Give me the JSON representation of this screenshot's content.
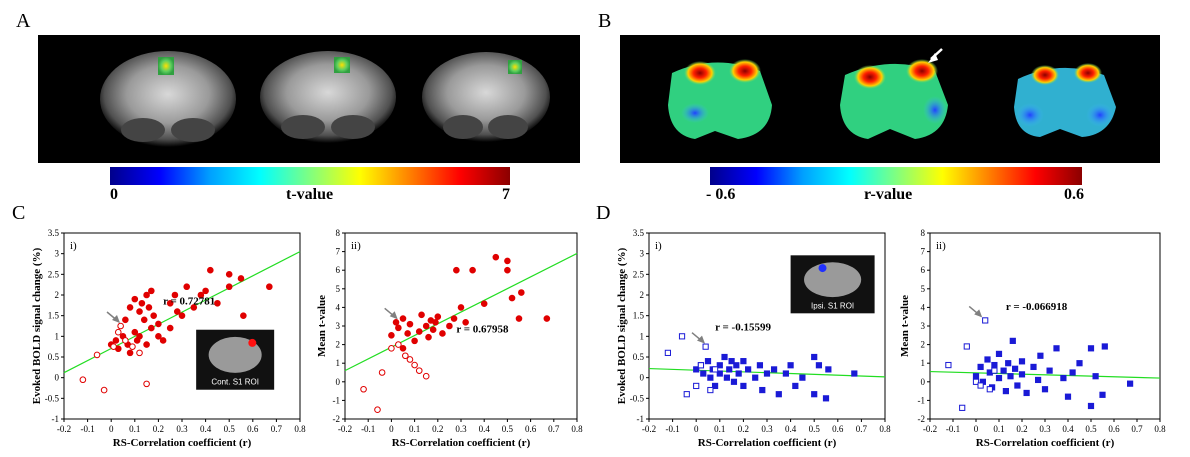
{
  "panels": {
    "A": {
      "letter": "A",
      "colorbar": {
        "min": "0",
        "label": "t-value",
        "max": "7"
      }
    },
    "B": {
      "letter": "B",
      "colorbar": {
        "min": "- 0.6",
        "label": "r-value",
        "max": "0.6"
      }
    },
    "C": {
      "letter": "C"
    },
    "D": {
      "letter": "D"
    }
  },
  "chart_data": [
    {
      "type": "scatter",
      "id": "C-i",
      "subplot_label": "i)",
      "xlabel": "RS-Correlation  coefficient (r)",
      "ylabel": "Evoked BOLD signal change (%)",
      "xlim": [
        -0.2,
        0.8
      ],
      "ylim": [
        -1,
        3.5
      ],
      "xticks": [
        "-0.2",
        "-0.1",
        "0",
        "0.1",
        "0.2",
        "0.3",
        "0.4",
        "0.5",
        "0.6",
        "0.7",
        "0.8"
      ],
      "yticks": [
        "-1",
        "-0.5",
        "0",
        "0.5",
        "1",
        "1.5",
        "2",
        "2.5",
        "3",
        "3.5"
      ],
      "annotation": "r = 0.72781",
      "inset_label": "Cont. S1 ROI",
      "fit_line": [
        [
          -0.2,
          0.12
        ],
        [
          0.8,
          3.05
        ]
      ],
      "series": [
        {
          "name": "filled",
          "marker": "filled-circle",
          "color": "#e00000",
          "points": [
            [
              0.0,
              0.8
            ],
            [
              0.02,
              0.9
            ],
            [
              0.03,
              0.7
            ],
            [
              0.05,
              1.0
            ],
            [
              0.06,
              1.4
            ],
            [
              0.07,
              0.8
            ],
            [
              0.08,
              1.7
            ],
            [
              0.08,
              0.6
            ],
            [
              0.1,
              1.1
            ],
            [
              0.1,
              1.9
            ],
            [
              0.11,
              0.9
            ],
            [
              0.12,
              1.6
            ],
            [
              0.12,
              1.0
            ],
            [
              0.13,
              1.8
            ],
            [
              0.14,
              1.4
            ],
            [
              0.15,
              2.0
            ],
            [
              0.15,
              0.8
            ],
            [
              0.16,
              1.7
            ],
            [
              0.17,
              1.2
            ],
            [
              0.17,
              2.1
            ],
            [
              0.18,
              1.5
            ],
            [
              0.2,
              1.3
            ],
            [
              0.2,
              1.0
            ],
            [
              0.22,
              0.9
            ],
            [
              0.25,
              1.2
            ],
            [
              0.25,
              1.8
            ],
            [
              0.27,
              2.0
            ],
            [
              0.28,
              1.6
            ],
            [
              0.3,
              1.5
            ],
            [
              0.32,
              2.2
            ],
            [
              0.35,
              1.7
            ],
            [
              0.38,
              2.0
            ],
            [
              0.4,
              2.1
            ],
            [
              0.42,
              2.6
            ],
            [
              0.45,
              1.8
            ],
            [
              0.5,
              2.2
            ],
            [
              0.5,
              2.5
            ],
            [
              0.55,
              2.4
            ],
            [
              0.56,
              1.5
            ],
            [
              0.67,
              2.2
            ]
          ]
        },
        {
          "name": "open",
          "marker": "open-circle",
          "color": "#e00000",
          "points": [
            [
              -0.12,
              -0.05
            ],
            [
              -0.06,
              0.55
            ],
            [
              -0.03,
              -0.3
            ],
            [
              0.01,
              0.75
            ],
            [
              0.03,
              1.1
            ],
            [
              0.04,
              1.25
            ],
            [
              0.06,
              0.9
            ],
            [
              0.09,
              0.75
            ],
            [
              0.12,
              0.6
            ],
            [
              0.15,
              -0.15
            ]
          ]
        }
      ],
      "arrow_point": [
        0.05,
        1.25
      ]
    },
    {
      "type": "scatter",
      "id": "C-ii",
      "subplot_label": "ii)",
      "xlabel": "RS-Correlation  coefficient (r)",
      "ylabel": "Mean  t-value",
      "xlim": [
        -0.2,
        0.8
      ],
      "ylim": [
        -2,
        8
      ],
      "xticks": [
        "-0.2",
        "-0.1",
        "0",
        "0.1",
        "0.2",
        "0.3",
        "0.4",
        "0.5",
        "0.6",
        "0.7",
        "0.8"
      ],
      "yticks": [
        "-2",
        "-1",
        "0",
        "1",
        "2",
        "3",
        "4",
        "5",
        "6",
        "7",
        "8"
      ],
      "annotation": "r = 0.67958",
      "fit_line": [
        [
          -0.2,
          0.6
        ],
        [
          0.8,
          6.9
        ]
      ],
      "series": [
        {
          "name": "filled",
          "marker": "filled-circle",
          "color": "#e00000",
          "points": [
            [
              0.0,
              2.5
            ],
            [
              0.02,
              3.2
            ],
            [
              0.03,
              2.9
            ],
            [
              0.05,
              3.4
            ],
            [
              0.05,
              1.8
            ],
            [
              0.07,
              2.6
            ],
            [
              0.08,
              3.1
            ],
            [
              0.1,
              2.2
            ],
            [
              0.12,
              2.7
            ],
            [
              0.13,
              3.6
            ],
            [
              0.15,
              3.0
            ],
            [
              0.16,
              2.4
            ],
            [
              0.17,
              3.3
            ],
            [
              0.18,
              2.8
            ],
            [
              0.19,
              3.2
            ],
            [
              0.2,
              3.5
            ],
            [
              0.22,
              2.6
            ],
            [
              0.25,
              3.0
            ],
            [
              0.27,
              3.4
            ],
            [
              0.28,
              6.0
            ],
            [
              0.3,
              4.0
            ],
            [
              0.32,
              3.2
            ],
            [
              0.35,
              6.0
            ],
            [
              0.4,
              4.2
            ],
            [
              0.45,
              6.7
            ],
            [
              0.5,
              6.0
            ],
            [
              0.5,
              6.5
            ],
            [
              0.52,
              4.5
            ],
            [
              0.55,
              3.4
            ],
            [
              0.56,
              4.8
            ],
            [
              0.67,
              3.4
            ]
          ]
        },
        {
          "name": "open",
          "marker": "open-circle",
          "color": "#e00000",
          "points": [
            [
              -0.12,
              -0.4
            ],
            [
              -0.06,
              -1.5
            ],
            [
              -0.04,
              0.5
            ],
            [
              0.0,
              1.8
            ],
            [
              0.03,
              2.0
            ],
            [
              0.06,
              1.4
            ],
            [
              0.08,
              1.2
            ],
            [
              0.1,
              0.9
            ],
            [
              0.12,
              0.6
            ],
            [
              0.15,
              0.3
            ]
          ]
        }
      ],
      "arrow_point": [
        0.04,
        3.2
      ]
    },
    {
      "type": "scatter",
      "id": "D-i",
      "subplot_label": "i)",
      "xlabel": "RS-Correlation  coefficient (r)",
      "ylabel": "Evoked BOLD signal change (%)",
      "xlim": [
        -0.2,
        0.8
      ],
      "ylim": [
        -1,
        3.5
      ],
      "xticks": [
        "-0.2",
        "-0.1",
        "0",
        "0.1",
        "0.2",
        "0.3",
        "0.4",
        "0.5",
        "0.6",
        "0.7",
        "0.8"
      ],
      "yticks": [
        "-1",
        "-0.5",
        "0",
        "0.5",
        "1",
        "1.5",
        "2",
        "2.5",
        "3",
        "3.5"
      ],
      "annotation": "r = -0.15599",
      "inset_label": "Ipsi. S1 ROI",
      "fit_line": [
        [
          -0.2,
          0.22
        ],
        [
          0.8,
          0.02
        ]
      ],
      "series": [
        {
          "name": "filled",
          "marker": "filled-square",
          "color": "#1a1ad6",
          "points": [
            [
              0.0,
              0.2
            ],
            [
              0.02,
              0.3
            ],
            [
              0.03,
              0.1
            ],
            [
              0.05,
              0.4
            ],
            [
              0.06,
              0.0
            ],
            [
              0.07,
              0.2
            ],
            [
              0.08,
              -0.2
            ],
            [
              0.1,
              0.3
            ],
            [
              0.1,
              0.1
            ],
            [
              0.12,
              0.5
            ],
            [
              0.13,
              0.0
            ],
            [
              0.14,
              0.2
            ],
            [
              0.15,
              0.4
            ],
            [
              0.16,
              -0.1
            ],
            [
              0.17,
              0.3
            ],
            [
              0.18,
              0.1
            ],
            [
              0.2,
              0.4
            ],
            [
              0.2,
              -0.2
            ],
            [
              0.22,
              0.2
            ],
            [
              0.25,
              0.0
            ],
            [
              0.27,
              0.3
            ],
            [
              0.28,
              -0.3
            ],
            [
              0.3,
              0.1
            ],
            [
              0.33,
              0.2
            ],
            [
              0.35,
              -0.4
            ],
            [
              0.38,
              0.1
            ],
            [
              0.4,
              0.3
            ],
            [
              0.42,
              -0.2
            ],
            [
              0.45,
              0.0
            ],
            [
              0.5,
              0.5
            ],
            [
              0.5,
              -0.4
            ],
            [
              0.52,
              0.3
            ],
            [
              0.55,
              -0.5
            ],
            [
              0.56,
              0.2
            ],
            [
              0.67,
              0.1
            ]
          ]
        },
        {
          "name": "open",
          "marker": "open-square",
          "color": "#1a1ad6",
          "points": [
            [
              -0.12,
              0.6
            ],
            [
              -0.06,
              1.0
            ],
            [
              -0.04,
              -0.4
            ],
            [
              0.0,
              -0.2
            ],
            [
              0.02,
              0.3
            ],
            [
              0.04,
              0.75
            ],
            [
              0.06,
              -0.3
            ],
            [
              0.08,
              0.2
            ]
          ]
        }
      ],
      "arrow_point": [
        0.05,
        0.75
      ]
    },
    {
      "type": "scatter",
      "id": "D-ii",
      "subplot_label": "ii)",
      "xlabel": "RS-Correlation  coefficient (r)",
      "ylabel": "Mean  t-value",
      "xlim": [
        -0.2,
        0.8
      ],
      "ylim": [
        -2,
        8
      ],
      "xticks": [
        "-0.2",
        "-0.1",
        "0",
        "0.1",
        "0.2",
        "0.3",
        "0.4",
        "0.5",
        "0.6",
        "0.7",
        "0.8"
      ],
      "yticks": [
        "-2",
        "-1",
        "0",
        "1",
        "2",
        "3",
        "4",
        "5",
        "6",
        "7",
        "8"
      ],
      "annotation": "r = -0.066918",
      "fit_line": [
        [
          -0.2,
          0.55
        ],
        [
          0.8,
          0.2
        ]
      ],
      "series": [
        {
          "name": "filled",
          "marker": "filled-square",
          "color": "#1a1ad6",
          "points": [
            [
              0.0,
              0.3
            ],
            [
              0.02,
              0.8
            ],
            [
              0.03,
              0.0
            ],
            [
              0.05,
              1.2
            ],
            [
              0.06,
              0.5
            ],
            [
              0.07,
              -0.3
            ],
            [
              0.08,
              0.9
            ],
            [
              0.1,
              0.2
            ],
            [
              0.1,
              1.5
            ],
            [
              0.12,
              0.6
            ],
            [
              0.13,
              -0.5
            ],
            [
              0.14,
              1.0
            ],
            [
              0.15,
              0.3
            ],
            [
              0.16,
              2.2
            ],
            [
              0.17,
              0.7
            ],
            [
              0.18,
              -0.2
            ],
            [
              0.2,
              1.1
            ],
            [
              0.2,
              0.4
            ],
            [
              0.22,
              -0.6
            ],
            [
              0.25,
              0.8
            ],
            [
              0.27,
              0.1
            ],
            [
              0.28,
              1.4
            ],
            [
              0.3,
              -0.4
            ],
            [
              0.32,
              0.6
            ],
            [
              0.35,
              1.8
            ],
            [
              0.38,
              0.2
            ],
            [
              0.4,
              -0.8
            ],
            [
              0.42,
              0.5
            ],
            [
              0.45,
              1.0
            ],
            [
              0.5,
              1.8
            ],
            [
              0.5,
              -1.3
            ],
            [
              0.52,
              0.3
            ],
            [
              0.55,
              -0.7
            ],
            [
              0.56,
              1.9
            ],
            [
              0.67,
              -0.1
            ]
          ]
        },
        {
          "name": "open",
          "marker": "open-square",
          "color": "#1a1ad6",
          "points": [
            [
              -0.12,
              0.9
            ],
            [
              -0.06,
              -1.4
            ],
            [
              -0.04,
              1.9
            ],
            [
              0.0,
              0.0
            ],
            [
              0.02,
              -0.2
            ],
            [
              0.04,
              3.3
            ],
            [
              0.06,
              -0.4
            ],
            [
              0.08,
              0.6
            ]
          ]
        }
      ],
      "arrow_point": [
        0.04,
        3.3
      ]
    }
  ]
}
